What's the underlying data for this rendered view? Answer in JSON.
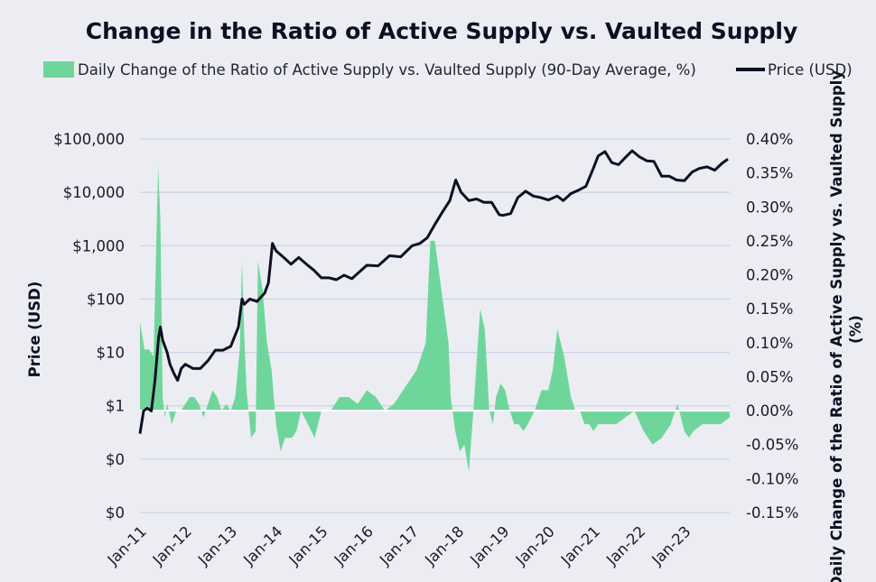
{
  "chart_data": {
    "type": "bar",
    "title": "Change in the Ratio of Active Supply vs. Vaulted Supply",
    "legend": {
      "placement": "top",
      "entries": [
        {
          "name": "Daily Change of the Ratio of Active Supply vs. Vaulted Supply (90-Day Average, %)",
          "color": "#6fd69b",
          "kind": "area"
        },
        {
          "name": "Price (USD)",
          "color": "#0f0f24",
          "kind": "line"
        }
      ]
    },
    "left_axis": {
      "label": "Price (USD)",
      "scale": "log",
      "ticks": [
        "$100,000",
        "$10,000",
        "$1,000",
        "$100",
        "$10",
        "$1",
        "$0",
        "$0"
      ],
      "tick_values": [
        100000,
        10000,
        1000,
        100,
        10,
        1,
        0.1,
        0.01
      ],
      "ylim": [
        0.01,
        100000
      ]
    },
    "right_axis": {
      "label": "Daily Change of the Ratio of Active Supply vs. Vaulted Supply (%)",
      "ticks": [
        "0.40%",
        "0.35%",
        "0.30%",
        "0.25%",
        "0.20%",
        "0.15%",
        "0.10%",
        "0.05%",
        "0.00%",
        "-0.05%",
        "-0.10%",
        "-0.15%"
      ],
      "ylim": [
        -0.15,
        0.4
      ]
    },
    "x_axis": {
      "ticks": [
        "Jan-11",
        "Jan-12",
        "Jan-13",
        "Jan-14",
        "Jan-15",
        "Jan-16",
        "Jan-17",
        "Jan-18",
        "Jan-19",
        "Jan-20",
        "Jan-21",
        "Jan-22",
        "Jan-23"
      ],
      "start": 2011.0,
      "end": 2024.0
    },
    "grid": true,
    "series": [
      {
        "name": "Daily Change of the Ratio of Active Supply vs. Vaulted Supply (90-Day Average, %)",
        "axis": "right",
        "x": [
          2011.0,
          2011.1,
          2011.2,
          2011.3,
          2011.4,
          2011.45,
          2011.5,
          2011.55,
          2011.6,
          2011.7,
          2011.8,
          2011.9,
          2012.0,
          2012.1,
          2012.2,
          2012.3,
          2012.4,
          2012.5,
          2012.6,
          2012.7,
          2012.75,
          2012.8,
          2012.9,
          2013.0,
          2013.1,
          2013.2,
          2013.25,
          2013.3,
          2013.35,
          2013.45,
          2013.55,
          2013.6,
          2013.7,
          2013.8,
          2013.9,
          2014.0,
          2014.1,
          2014.2,
          2014.35,
          2014.45,
          2014.55,
          2014.7,
          2014.85,
          2015.0,
          2015.2,
          2015.4,
          2015.6,
          2015.8,
          2016.0,
          2016.2,
          2016.4,
          2016.6,
          2016.8,
          2017.0,
          2017.1,
          2017.2,
          2017.3,
          2017.4,
          2017.5,
          2017.6,
          2017.7,
          2017.8,
          2017.85,
          2017.95,
          2018.05,
          2018.15,
          2018.25,
          2018.35,
          2018.5,
          2018.6,
          2018.7,
          2018.78,
          2018.85,
          2018.95,
          2019.05,
          2019.15,
          2019.25,
          2019.35,
          2019.45,
          2019.55,
          2019.7,
          2019.85,
          2020.0,
          2020.1,
          2020.2,
          2020.35,
          2020.5,
          2020.6,
          2020.7,
          2020.8,
          2020.9,
          2021.0,
          2021.1,
          2021.2,
          2021.35,
          2021.5,
          2021.7,
          2021.9,
          2022.1,
          2022.3,
          2022.5,
          2022.7,
          2022.85,
          2023.0,
          2023.1,
          2023.2,
          2023.4,
          2023.6,
          2023.8,
          2024.0
        ],
        "values": [
          0.13,
          0.09,
          0.09,
          0.08,
          0.36,
          0.28,
          0.02,
          -0.01,
          0.01,
          -0.02,
          0.0,
          0.0,
          0.01,
          0.02,
          0.02,
          0.01,
          -0.01,
          0.01,
          0.03,
          0.02,
          0.01,
          0.0,
          0.01,
          0.0,
          0.02,
          0.09,
          0.22,
          0.11,
          0.03,
          -0.04,
          -0.03,
          0.22,
          0.18,
          0.1,
          0.06,
          -0.02,
          -0.06,
          -0.04,
          -0.04,
          -0.03,
          0.0,
          -0.02,
          -0.04,
          0.0,
          0.0,
          0.02,
          0.02,
          0.01,
          0.03,
          0.02,
          0.0,
          0.01,
          0.03,
          0.05,
          0.06,
          0.08,
          0.1,
          0.25,
          0.25,
          0.2,
          0.15,
          0.1,
          0.02,
          -0.03,
          -0.06,
          -0.05,
          -0.09,
          0.0,
          0.15,
          0.12,
          0.0,
          -0.02,
          0.02,
          0.04,
          0.03,
          0.0,
          -0.02,
          -0.02,
          -0.03,
          -0.02,
          0.0,
          0.03,
          0.03,
          0.06,
          0.12,
          0.08,
          0.02,
          0.0,
          0.0,
          -0.02,
          -0.02,
          -0.03,
          -0.02,
          -0.02,
          -0.02,
          -0.02,
          -0.01,
          0.0,
          -0.03,
          -0.05,
          -0.04,
          -0.02,
          0.01,
          -0.03,
          -0.04,
          -0.03,
          -0.02,
          -0.02,
          -0.02,
          -0.01
        ]
      },
      {
        "name": "Price (USD)",
        "axis": "left",
        "x": [
          2011.0,
          2011.08,
          2011.16,
          2011.25,
          2011.33,
          2011.41,
          2011.45,
          2011.5,
          2011.55,
          2011.6,
          2011.66,
          2011.75,
          2011.83,
          2011.91,
          2012.0,
          2012.17,
          2012.33,
          2012.5,
          2012.66,
          2012.83,
          2013.0,
          2013.17,
          2013.25,
          2013.3,
          2013.42,
          2013.58,
          2013.75,
          2013.83,
          2013.92,
          2014.0,
          2014.17,
          2014.33,
          2014.5,
          2014.67,
          2014.83,
          2015.0,
          2015.17,
          2015.33,
          2015.5,
          2015.67,
          2015.83,
          2016.0,
          2016.25,
          2016.5,
          2016.75,
          2017.0,
          2017.17,
          2017.33,
          2017.5,
          2017.67,
          2017.83,
          2017.96,
          2018.08,
          2018.25,
          2018.42,
          2018.58,
          2018.75,
          2018.92,
          2019.0,
          2019.17,
          2019.33,
          2019.5,
          2019.67,
          2019.83,
          2020.0,
          2020.2,
          2020.33,
          2020.5,
          2020.67,
          2020.83,
          2021.0,
          2021.1,
          2021.25,
          2021.4,
          2021.55,
          2021.7,
          2021.85,
          2022.0,
          2022.17,
          2022.33,
          2022.5,
          2022.67,
          2022.83,
          2023.0,
          2023.17,
          2023.33,
          2023.5,
          2023.67,
          2023.83,
          2023.96
        ],
        "values": [
          0.3,
          0.8,
          0.9,
          0.8,
          3.0,
          19.0,
          30.0,
          17.0,
          13.0,
          10.0,
          6.0,
          4.0,
          3.0,
          5.0,
          6.0,
          5.0,
          5.0,
          7.0,
          11.0,
          11.0,
          13.0,
          30.0,
          100.0,
          80.0,
          100.0,
          90.0,
          130.0,
          200.0,
          1100.0,
          800.0,
          600.0,
          450.0,
          600.0,
          450.0,
          350.0,
          250.0,
          250.0,
          230.0,
          280.0,
          240.0,
          320.0,
          430.0,
          420.0,
          650.0,
          620.0,
          1000.0,
          1100.0,
          1400.0,
          2500.0,
          4300.0,
          7000.0,
          17000.0,
          10000.0,
          7000.0,
          7500.0,
          6500.0,
          6500.0,
          3800.0,
          3700.0,
          4000.0,
          8000.0,
          10500.0,
          8500.0,
          8000.0,
          7200.0,
          8500.0,
          7000.0,
          9500.0,
          11000.0,
          13000.0,
          29000.0,
          48000.0,
          58000.0,
          36000.0,
          33000.0,
          45000.0,
          60000.0,
          47000.0,
          39000.0,
          38000.0,
          20000.0,
          20000.0,
          17000.0,
          16500.0,
          24000.0,
          28000.0,
          30000.0,
          26000.0,
          35000.0,
          42000.0
        ]
      }
    ]
  }
}
